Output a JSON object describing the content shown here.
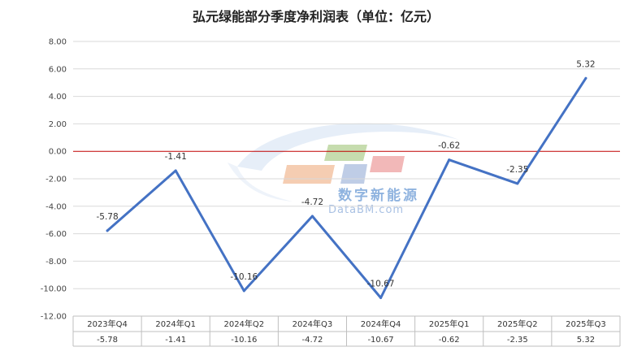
{
  "chart_data": {
    "type": "line",
    "title": "弘元绿能部分季度净利润表（单位：亿元）",
    "categories": [
      "2023年Q4",
      "2024年Q1",
      "2024年Q2",
      "2024年Q3",
      "2024年Q4",
      "2025年Q1",
      "2025年Q2",
      "2025年Q3"
    ],
    "series": [
      {
        "values": [
          -5.78,
          -1.41,
          -10.16,
          -4.72,
          -10.67,
          -0.62,
          -2.35,
          5.32
        ],
        "data_labels": [
          "-5.78",
          "-1.41",
          "-10.16",
          "-4.72",
          "-10.67",
          "-0.62",
          "-2.35",
          "5.32"
        ]
      }
    ],
    "y_ticks": [
      "8.00",
      "6.00",
      "4.00",
      "2.00",
      "0.00",
      "-2.00",
      "-4.00",
      "-6.00",
      "-8.00",
      "-10.00",
      "-12.00"
    ],
    "ylim": [
      -12,
      8
    ],
    "grid": true,
    "zero_line": true,
    "data_table": {
      "values": [
        "-5.78",
        "-1.41",
        "-10.16",
        "-4.72",
        "-10.67",
        "-0.62",
        "-2.35",
        "5.32"
      ]
    },
    "colors": {
      "line": "#4472c4",
      "zero_line": "#c00000",
      "grid": "#d9d9d9"
    }
  },
  "watermark": {
    "cn": "数字新能源",
    "en": "DataBM.com"
  }
}
